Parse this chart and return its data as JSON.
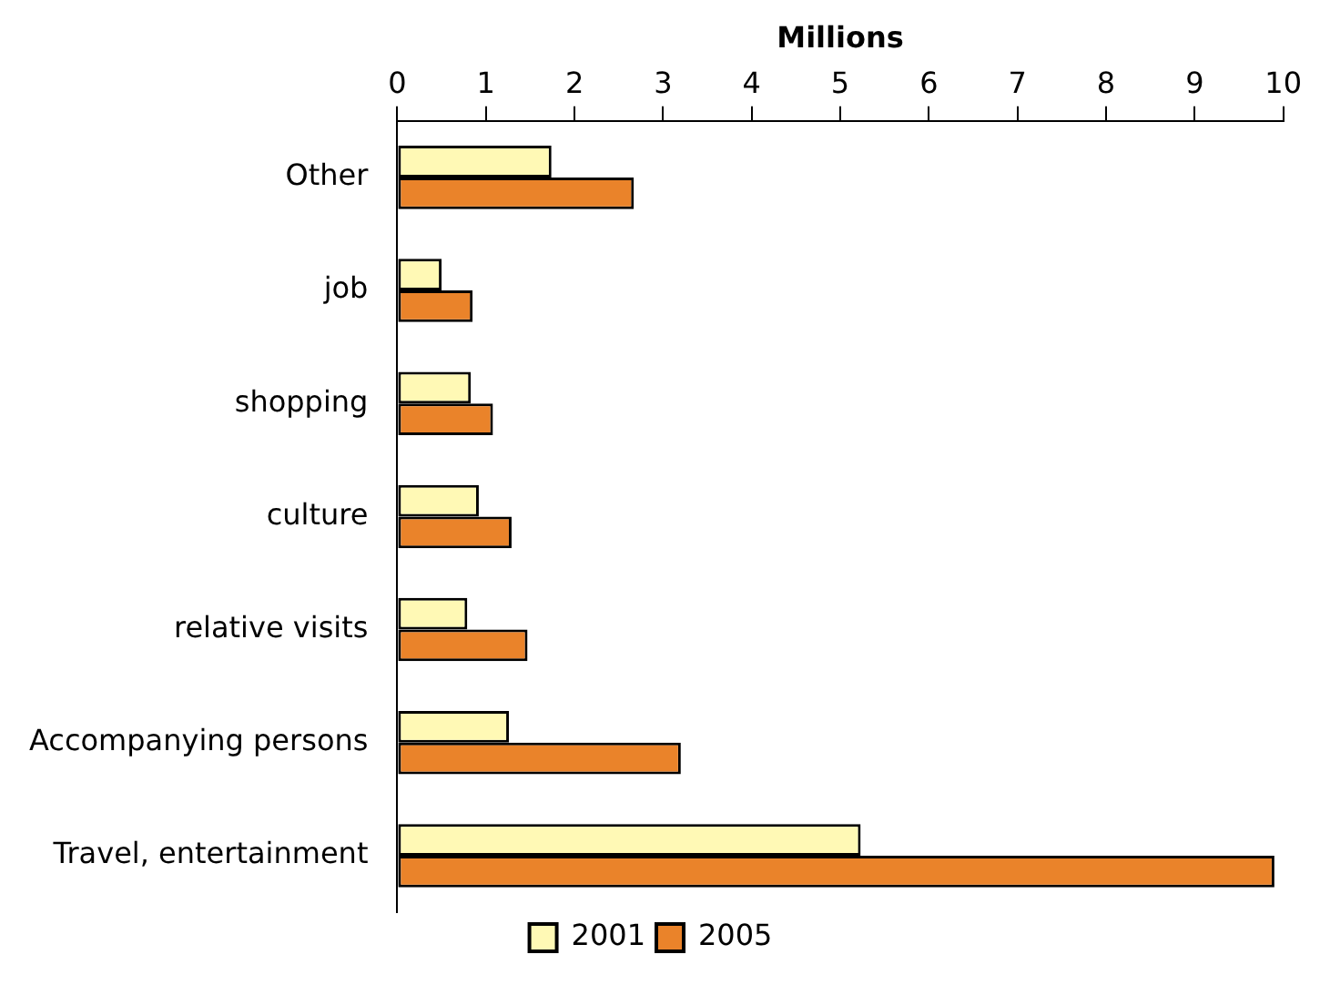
{
  "chart_data": {
    "type": "bar",
    "orientation": "horizontal",
    "xlabel": "Millions",
    "categories": [
      "Other",
      "job",
      "shopping",
      "culture",
      "relative visits",
      "Accompanying persons",
      "Travel, entertainment"
    ],
    "series": [
      {
        "name": "2001",
        "color": "#fff9b5",
        "values": [
          1.74,
          0.5,
          0.83,
          0.92,
          0.79,
          1.26,
          5.23
        ]
      },
      {
        "name": "2005",
        "color": "#ea832a",
        "values": [
          2.67,
          0.85,
          1.08,
          1.29,
          1.47,
          3.2,
          9.9
        ]
      }
    ],
    "xlim": [
      0,
      10
    ],
    "xticks": [
      0,
      1,
      2,
      3,
      4,
      5,
      6,
      7,
      8,
      9,
      10
    ],
    "grid": false,
    "legend": "bottom"
  }
}
